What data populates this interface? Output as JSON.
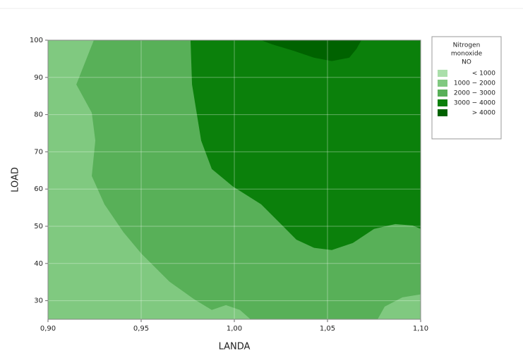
{
  "chart_data": {
    "type": "contour",
    "x_label": "LANDA",
    "y_label": "LOAD",
    "xlim": [
      0.9,
      1.1
    ],
    "ylim": [
      25,
      100
    ],
    "xticks": [
      {
        "value": 0.9,
        "label": "0,90"
      },
      {
        "value": 0.95,
        "label": "0,95"
      },
      {
        "value": 1.0,
        "label": "1,00"
      },
      {
        "value": 1.05,
        "label": "1,05"
      },
      {
        "value": 1.1,
        "label": "1,10"
      }
    ],
    "yticks": [
      30,
      40,
      50,
      60,
      70,
      80,
      90,
      100
    ],
    "grid": true,
    "legend_position": "right",
    "legend_title": [
      "Nitrogen",
      "monoxide",
      "NO"
    ],
    "background_level": 1,
    "levels": [
      {
        "name": "<  1000",
        "color": "#aadfaa"
      },
      {
        "name": "1000 − 2000",
        "color": "#80c980"
      },
      {
        "name": "2000 − 3000",
        "color": "#58b058"
      },
      {
        "name": "3000 − 4000",
        "color": "#0b800b"
      },
      {
        "name": ">  4000",
        "color": "#006200"
      }
    ],
    "regions": [
      {
        "level": 2,
        "x": [
          0.9246,
          0.9152,
          0.9235,
          0.9254,
          0.9235,
          0.9303,
          0.9405,
          0.95,
          0.9652,
          0.9784,
          0.9879,
          0.9955,
          1.003,
          1.0087,
          1.0769,
          1.0807,
          1.0902,
          1.1,
          1.1
        ],
        "y": [
          100,
          88.1,
          80.5,
          73.0,
          63.5,
          55.9,
          48.4,
          42.7,
          35.1,
          30.4,
          27.5,
          28.8,
          27.5,
          25,
          25,
          28.4,
          30.9,
          31.7,
          100
        ]
      },
      {
        "level": 3,
        "x": [
          0.9765,
          0.9773,
          0.9822,
          0.9879,
          0.9992,
          1.0144,
          1.0258,
          1.0333,
          1.0428,
          1.0523,
          1.0636,
          1.075,
          1.0864,
          1.0958,
          1.1,
          1.1
        ],
        "y": [
          100,
          88.1,
          73.0,
          65.4,
          60.7,
          55.9,
          50.2,
          46.4,
          44.2,
          43.6,
          45.5,
          49.3,
          50.6,
          50.2,
          49.3,
          100
        ]
      },
      {
        "level": 4,
        "x": [
          1.0144,
          1.0201,
          1.0314,
          1.0428,
          1.0523,
          1.0617,
          1.0655,
          1.0682
        ],
        "y": [
          100,
          98.9,
          97.2,
          95.3,
          94.4,
          95.3,
          97.6,
          100
        ]
      }
    ]
  }
}
